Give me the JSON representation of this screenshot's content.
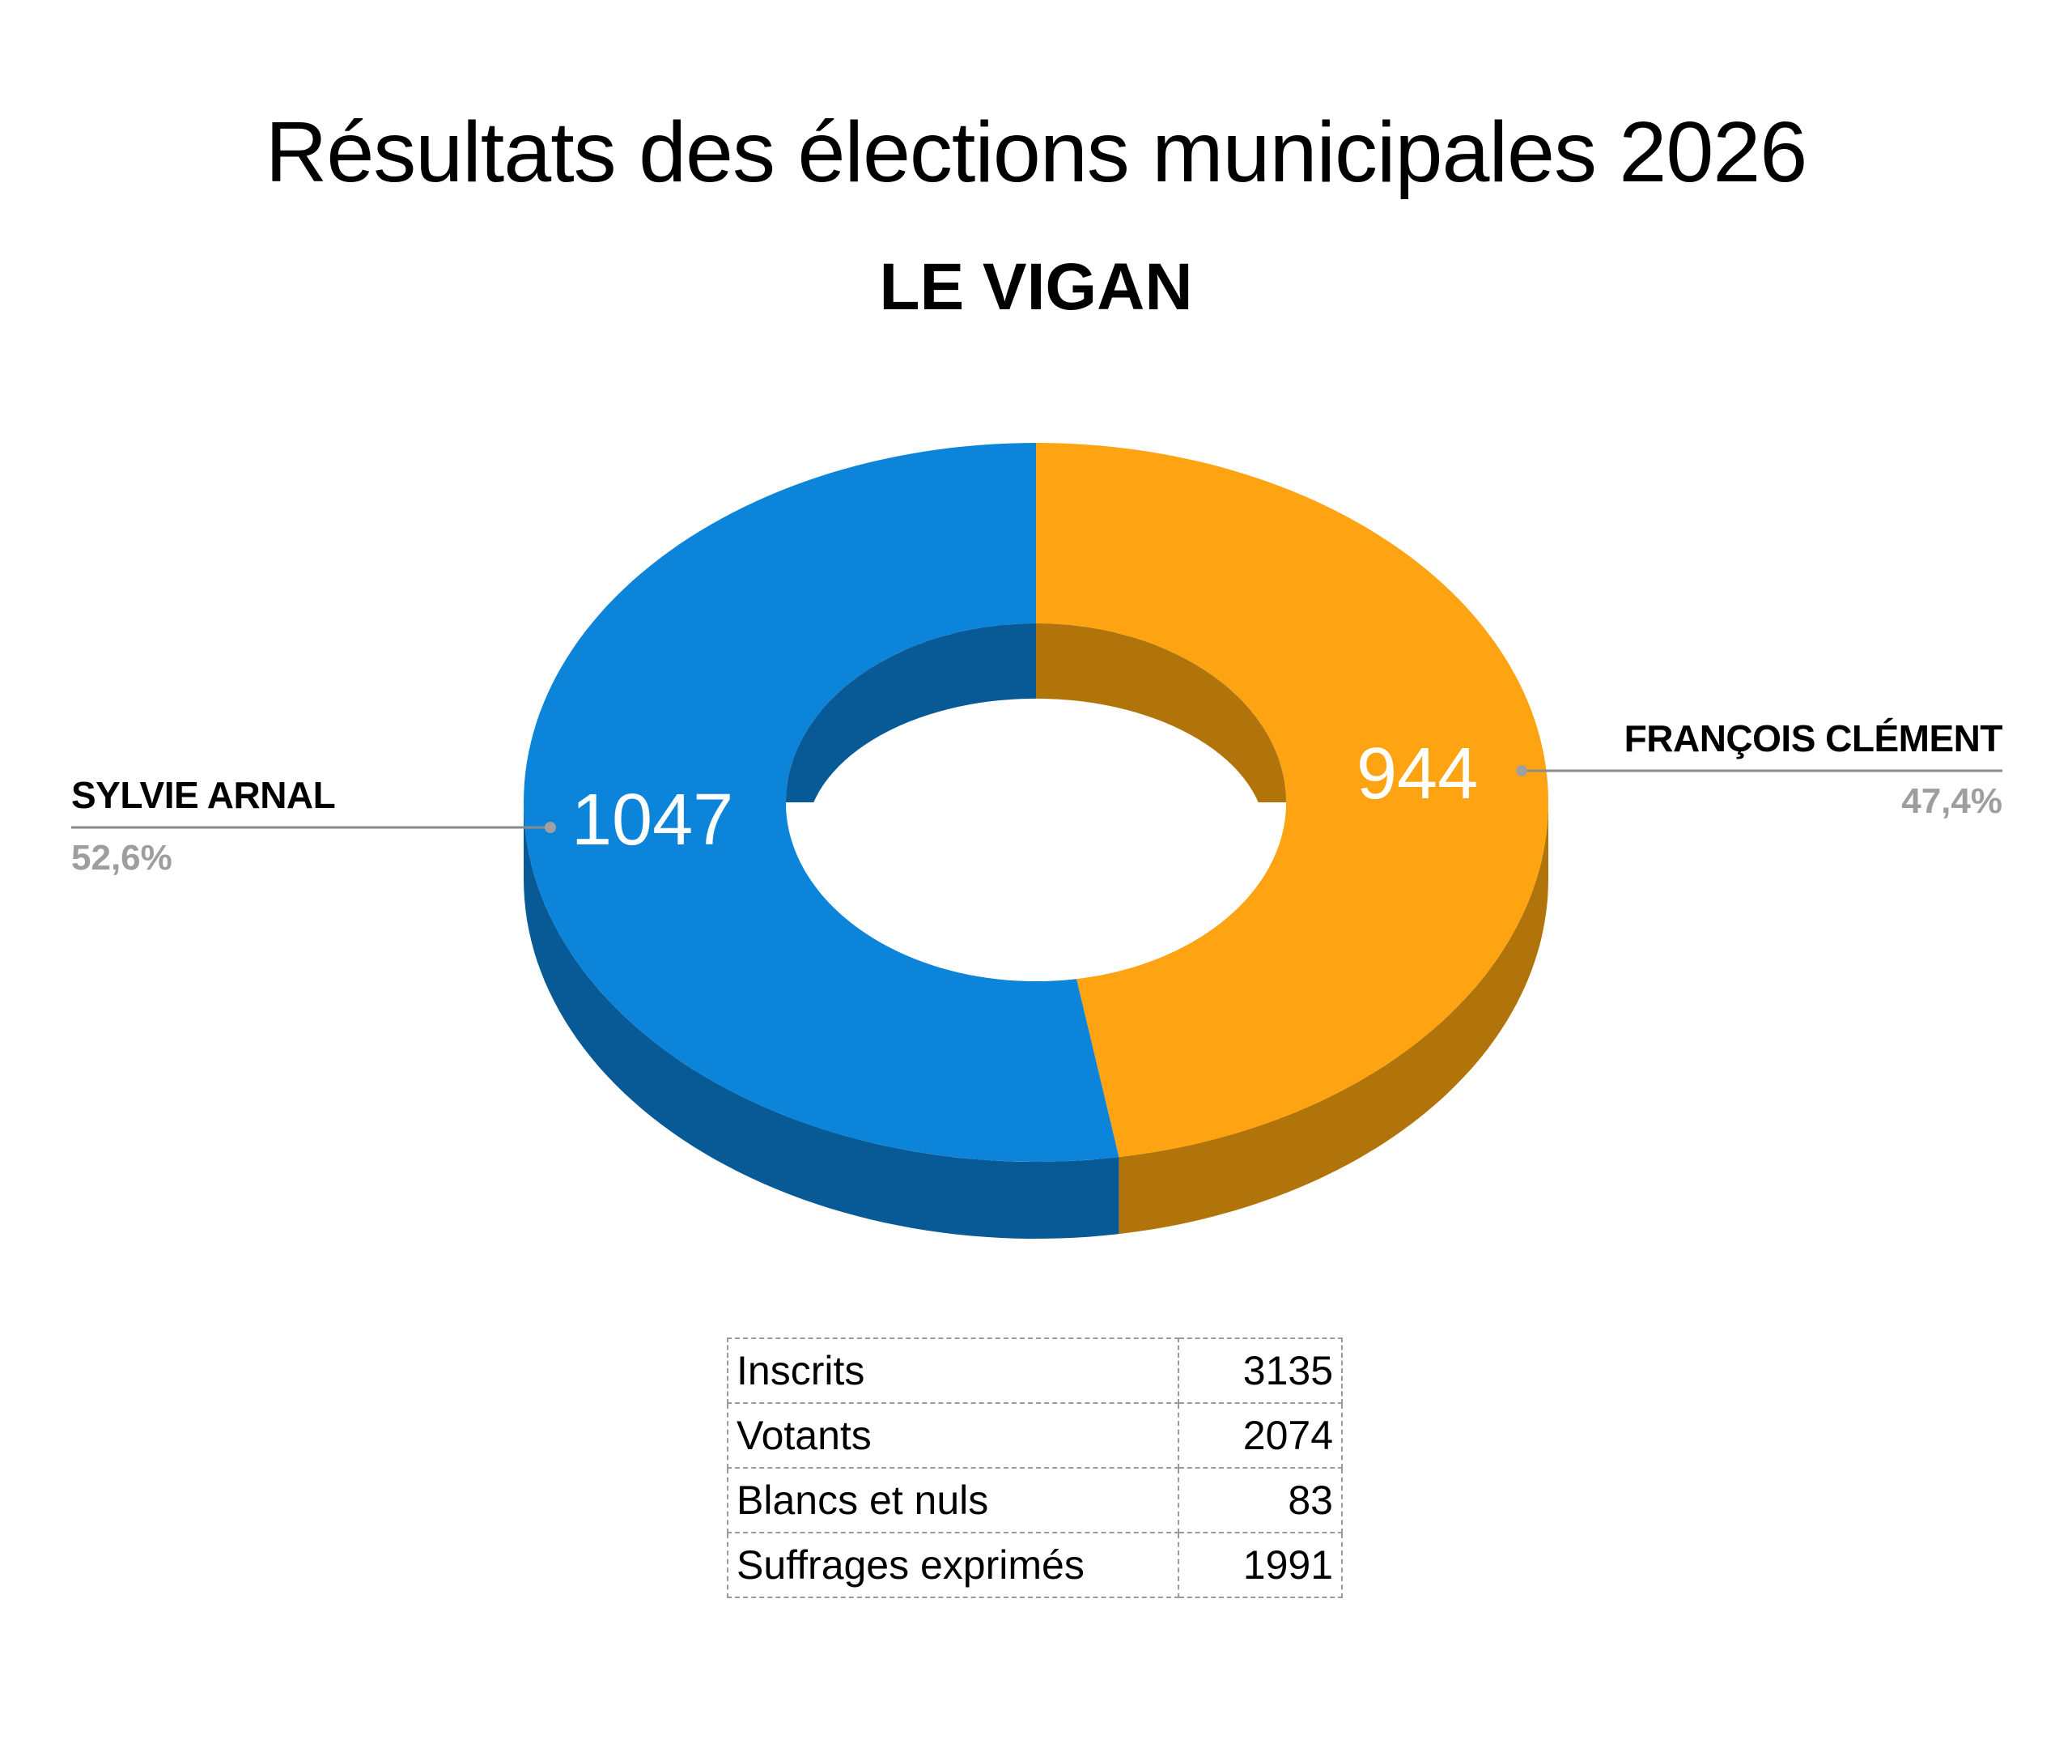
{
  "header": {
    "title": "Résultats des élections municipales 2026",
    "subtitle": "LE VIGAN"
  },
  "chart_data": {
    "type": "pie",
    "variant": "3d-donut",
    "title": "Résultats des élections municipales 2026",
    "subtitle": "LE VIGAN",
    "series": [
      {
        "name": "SYLVIE ARNAL",
        "value": 1047,
        "percent_label": "52,6%",
        "color": "#0b84d9",
        "side_color": "#075a96",
        "label_side": "left"
      },
      {
        "name": "FRANÇOIS CLÉMENT",
        "value": 944,
        "percent_label": "47,4%",
        "color": "#fea413",
        "side_color": "#b1740a",
        "label_side": "right"
      }
    ]
  },
  "stats_table": {
    "rows": [
      {
        "label": "Inscrits",
        "value": "3135"
      },
      {
        "label": "Votants",
        "value": "2074"
      },
      {
        "label": "Blancs et nuls",
        "value": "83"
      },
      {
        "label": "Suffrages exprimés",
        "value": "1991"
      }
    ]
  }
}
